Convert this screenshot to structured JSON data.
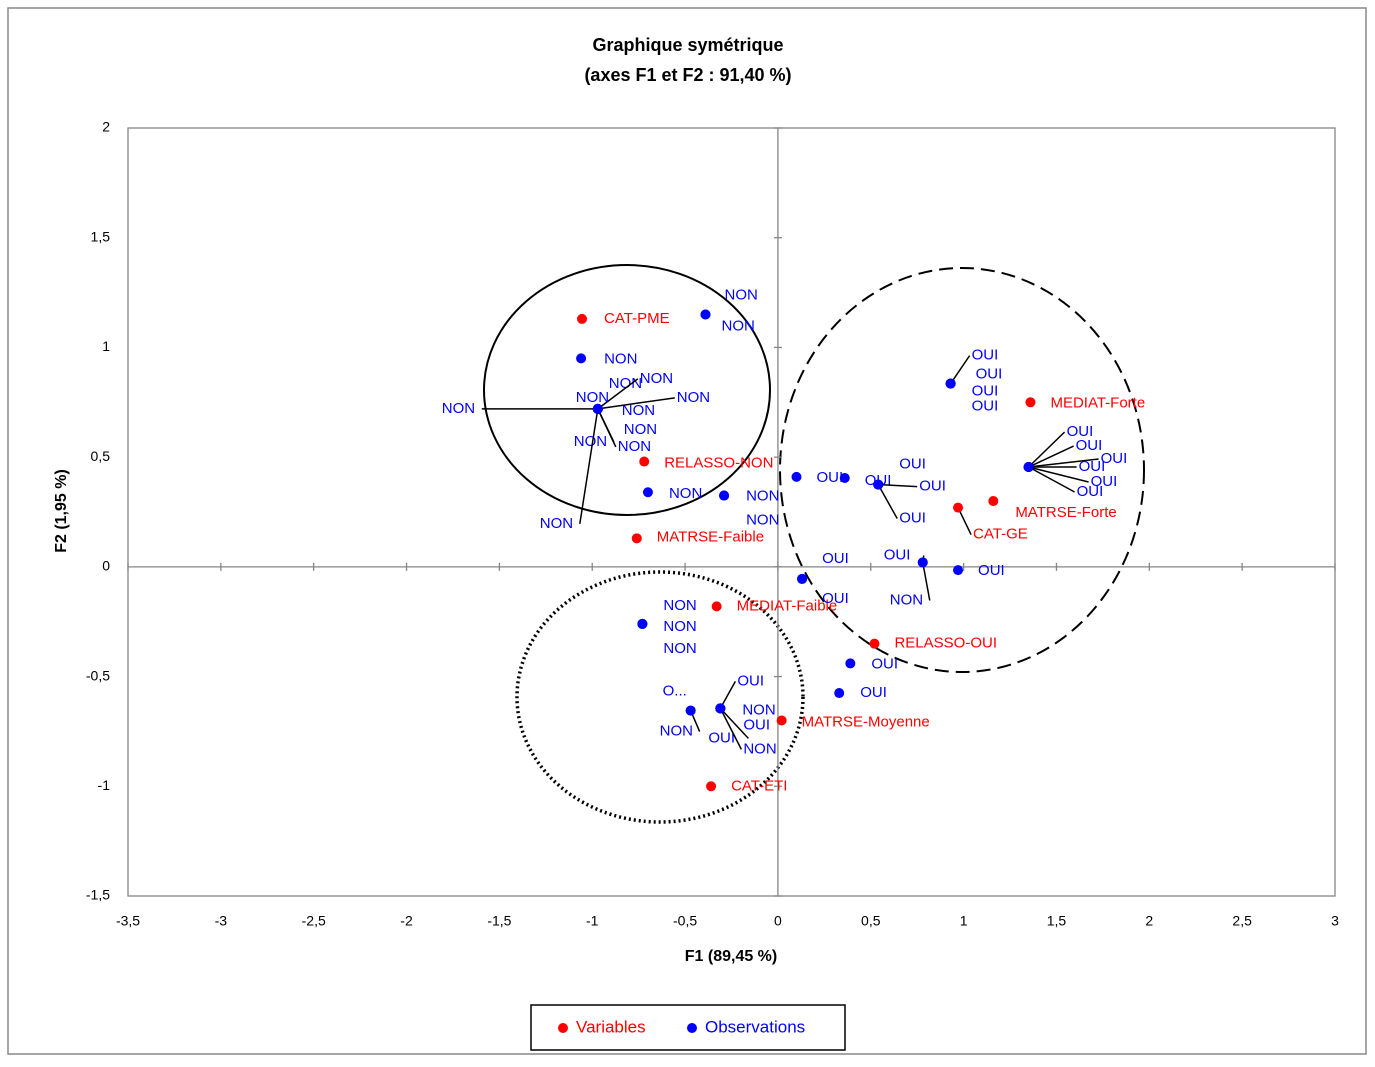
{
  "chart_data": {
    "type": "scatter",
    "title": "Graphique symétrique",
    "subtitle": "(axes F1 et F2 : 91,40 %)",
    "x_label": "F1 (89,45 %)",
    "y_label": "F2 (1,95 %)",
    "xlim": [
      -3.5,
      3
    ],
    "ylim": [
      -1.5,
      2
    ],
    "xticks": [
      {
        "value": -3.5,
        "label": "-3,5"
      },
      -3,
      {
        "value": -2.5,
        "label": "-2,5"
      },
      -2,
      {
        "value": -1.5,
        "label": "-1,5"
      },
      -1,
      {
        "value": -0.5,
        "label": "-0,5"
      },
      0,
      {
        "value": 0.5,
        "label": "0,5"
      },
      1,
      {
        "value": 1.5,
        "label": "1,5"
      },
      2,
      {
        "value": 2.5,
        "label": "2,5"
      },
      3
    ],
    "yticks": [
      {
        "value": -1.5,
        "label": "-1,5"
      },
      -1,
      {
        "value": -0.5,
        "label": "-0,5"
      },
      0,
      {
        "value": 0.5,
        "label": "0,5"
      },
      1,
      {
        "value": 1.5,
        "label": "1,5"
      },
      2
    ],
    "series": [
      {
        "name": "Variables",
        "color": "#ff0000",
        "x": [
          -1.055,
          -0.72,
          -0.76,
          1.36,
          1.16,
          0.97,
          -0.33,
          0.52,
          0.02,
          -0.36
        ],
        "values": [
          1.13,
          0.48,
          0.13,
          0.75,
          0.3,
          0.27,
          -0.18,
          -0.35,
          -0.7,
          -1.0
        ],
        "labels": [
          "CAT-PME",
          "RELASSO-NON",
          "MATRSE-Faible",
          "MEDIAT-Forte",
          "MATRSE-Forte",
          "CAT-GE",
          "MEDIAT-Faible",
          "RELASSO-OUI",
          "MATRSE-Moyenne",
          "CAT-ETI"
        ]
      },
      {
        "name": "Observations",
        "color": "#0000ff",
        "x": [
          -0.39,
          -0.39,
          -1.06,
          -0.97,
          -0.97,
          -0.97,
          -0.97,
          -0.97,
          -0.97,
          -0.97,
          -0.97,
          -0.97,
          -0.97,
          -0.7,
          -0.29,
          -0.29,
          0.1,
          0.36,
          0.54,
          0.54,
          0.54,
          0.93,
          0.93,
          0.93,
          0.93,
          1.35,
          1.35,
          1.35,
          1.35,
          1.35,
          1.35,
          0.13,
          0.13,
          0.78,
          0.78,
          0.97,
          -0.73,
          -0.73,
          -0.73,
          0.39,
          0.33,
          -0.47,
          -0.47,
          -0.31,
          -0.31,
          -0.31,
          -0.31,
          -0.31
        ],
        "values": [
          1.15,
          1.15,
          0.95,
          0.72,
          0.72,
          0.72,
          0.72,
          0.72,
          0.72,
          0.72,
          0.72,
          0.72,
          0.72,
          0.34,
          0.325,
          0.325,
          0.41,
          0.405,
          0.375,
          0.375,
          0.375,
          0.835,
          0.835,
          0.835,
          0.835,
          0.455,
          0.455,
          0.455,
          0.455,
          0.455,
          0.455,
          -0.055,
          -0.055,
          0.02,
          0.02,
          -0.015,
          -0.26,
          -0.26,
          -0.26,
          -0.44,
          -0.575,
          -0.655,
          -0.655,
          -0.645,
          -0.645,
          -0.645,
          -0.645,
          -0.645
        ],
        "labels": [
          "NON",
          "NON",
          "NON",
          "NON",
          "NON",
          "NON",
          "NON",
          "NON",
          "NON",
          "NON",
          "NON",
          "NON",
          "NON",
          "NON",
          "NON",
          "NON",
          "OUI",
          "OUI",
          "OUI",
          "OUI",
          "OUI",
          "OUI",
          "OUI",
          "OUI",
          "OUI",
          "OUI",
          "OUI",
          "OUI",
          "OUI",
          "OUI",
          "OUI",
          "OUI",
          "OUI",
          "OUI",
          "NON",
          "OUI",
          "NON",
          "NON",
          "NON",
          "OUI",
          "OUI",
          "O...",
          "NON",
          "OUI",
          "NON",
          "OUI",
          "OUI",
          "NON"
        ]
      }
    ]
  }
}
